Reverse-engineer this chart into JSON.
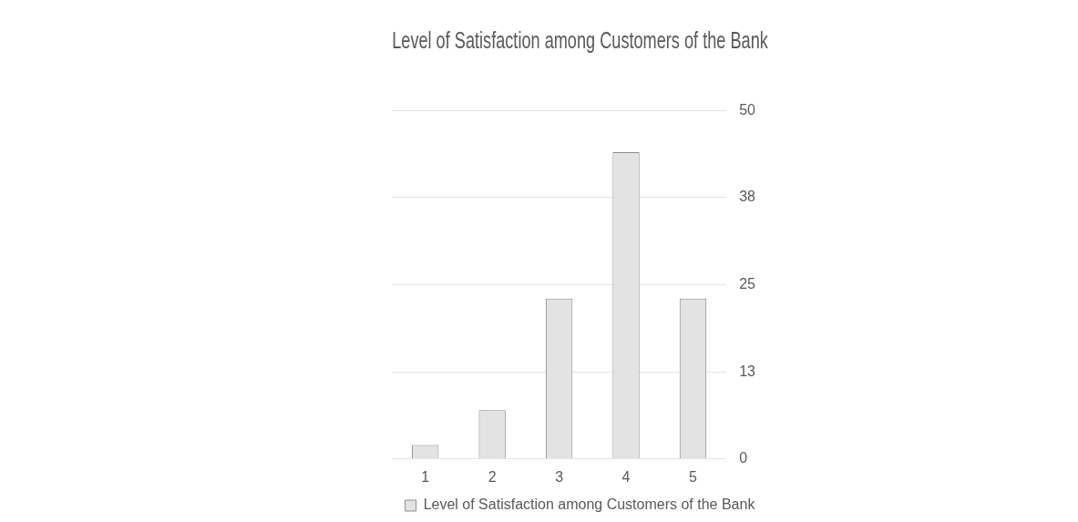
{
  "chart_data": {
    "type": "bar",
    "title": "Level of Satisfaction among Customers of the Bank",
    "categories": [
      "1",
      "2",
      "3",
      "4",
      "5"
    ],
    "series": [
      {
        "name": "Level of Satisfaction among Customers of the Bank",
        "color": "#e3e3e3",
        "values": [
          2,
          7,
          23,
          44,
          23
        ]
      }
    ],
    "ylim": [
      0,
      50
    ],
    "yticks": [
      0,
      {
        "value": 12.5,
        "label": "13"
      },
      25,
      {
        "value": 37.5,
        "label": "38"
      },
      50
    ],
    "grid": "y",
    "legend": "bottom"
  }
}
